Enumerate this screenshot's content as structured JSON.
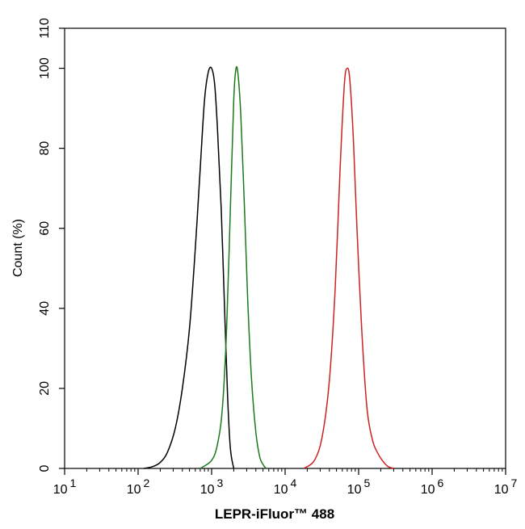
{
  "chart_data": {
    "type": "line",
    "xlabel": "LEPR-iFluor™ 488",
    "ylabel": "Count  (%)",
    "x_scale": "log",
    "xlim": [
      10,
      10000000
    ],
    "ylim": [
      0,
      110
    ],
    "x_ticks": [
      {
        "value": 10,
        "base": "10",
        "exp": "1"
      },
      {
        "value": 100,
        "base": "10",
        "exp": "2"
      },
      {
        "value": 1000,
        "base": "10",
        "exp": "3"
      },
      {
        "value": 10000,
        "base": "10",
        "exp": "4"
      },
      {
        "value": 100000,
        "base": "10",
        "exp": "5"
      },
      {
        "value": 1000000,
        "base": "10",
        "exp": "6"
      },
      {
        "value": 10000000,
        "base": "10",
        "exp": "7"
      }
    ],
    "y_ticks": [
      "0",
      "20",
      "40",
      "60",
      "80",
      "100",
      "110"
    ],
    "grid": false,
    "legend": "none",
    "series": [
      {
        "color": "#000000",
        "x": [
          120,
          160,
          200,
          250,
          320,
          400,
          500,
          600,
          700,
          800,
          900,
          1000,
          1100,
          1200,
          1350,
          1500,
          1650,
          1800,
          2000
        ],
        "y": [
          0,
          0.5,
          1.5,
          4,
          10,
          20,
          35,
          55,
          75,
          92,
          99,
          100,
          96,
          85,
          65,
          40,
          18,
          5,
          0
        ]
      },
      {
        "color": "#1a7a1a",
        "x": [
          700,
          1000,
          1200,
          1400,
          1600,
          1800,
          2000,
          2150,
          2300,
          2500,
          2800,
          3100,
          3500,
          4000,
          4500,
          5000,
          5500
        ],
        "y": [
          0,
          2,
          6,
          15,
          35,
          65,
          92,
          100,
          98,
          88,
          65,
          42,
          22,
          9,
          3,
          1,
          0
        ]
      },
      {
        "color": "#cc2222",
        "x": [
          18000,
          25000,
          32000,
          40000,
          48000,
          56000,
          64000,
          70000,
          76000,
          85000,
          95000,
          110000,
          130000,
          155000,
          180000,
          210000,
          250000,
          300000
        ],
        "y": [
          0,
          2,
          8,
          22,
          45,
          75,
          96,
          100,
          97,
          82,
          60,
          35,
          15,
          7,
          4,
          2,
          0.5,
          0
        ]
      }
    ]
  }
}
